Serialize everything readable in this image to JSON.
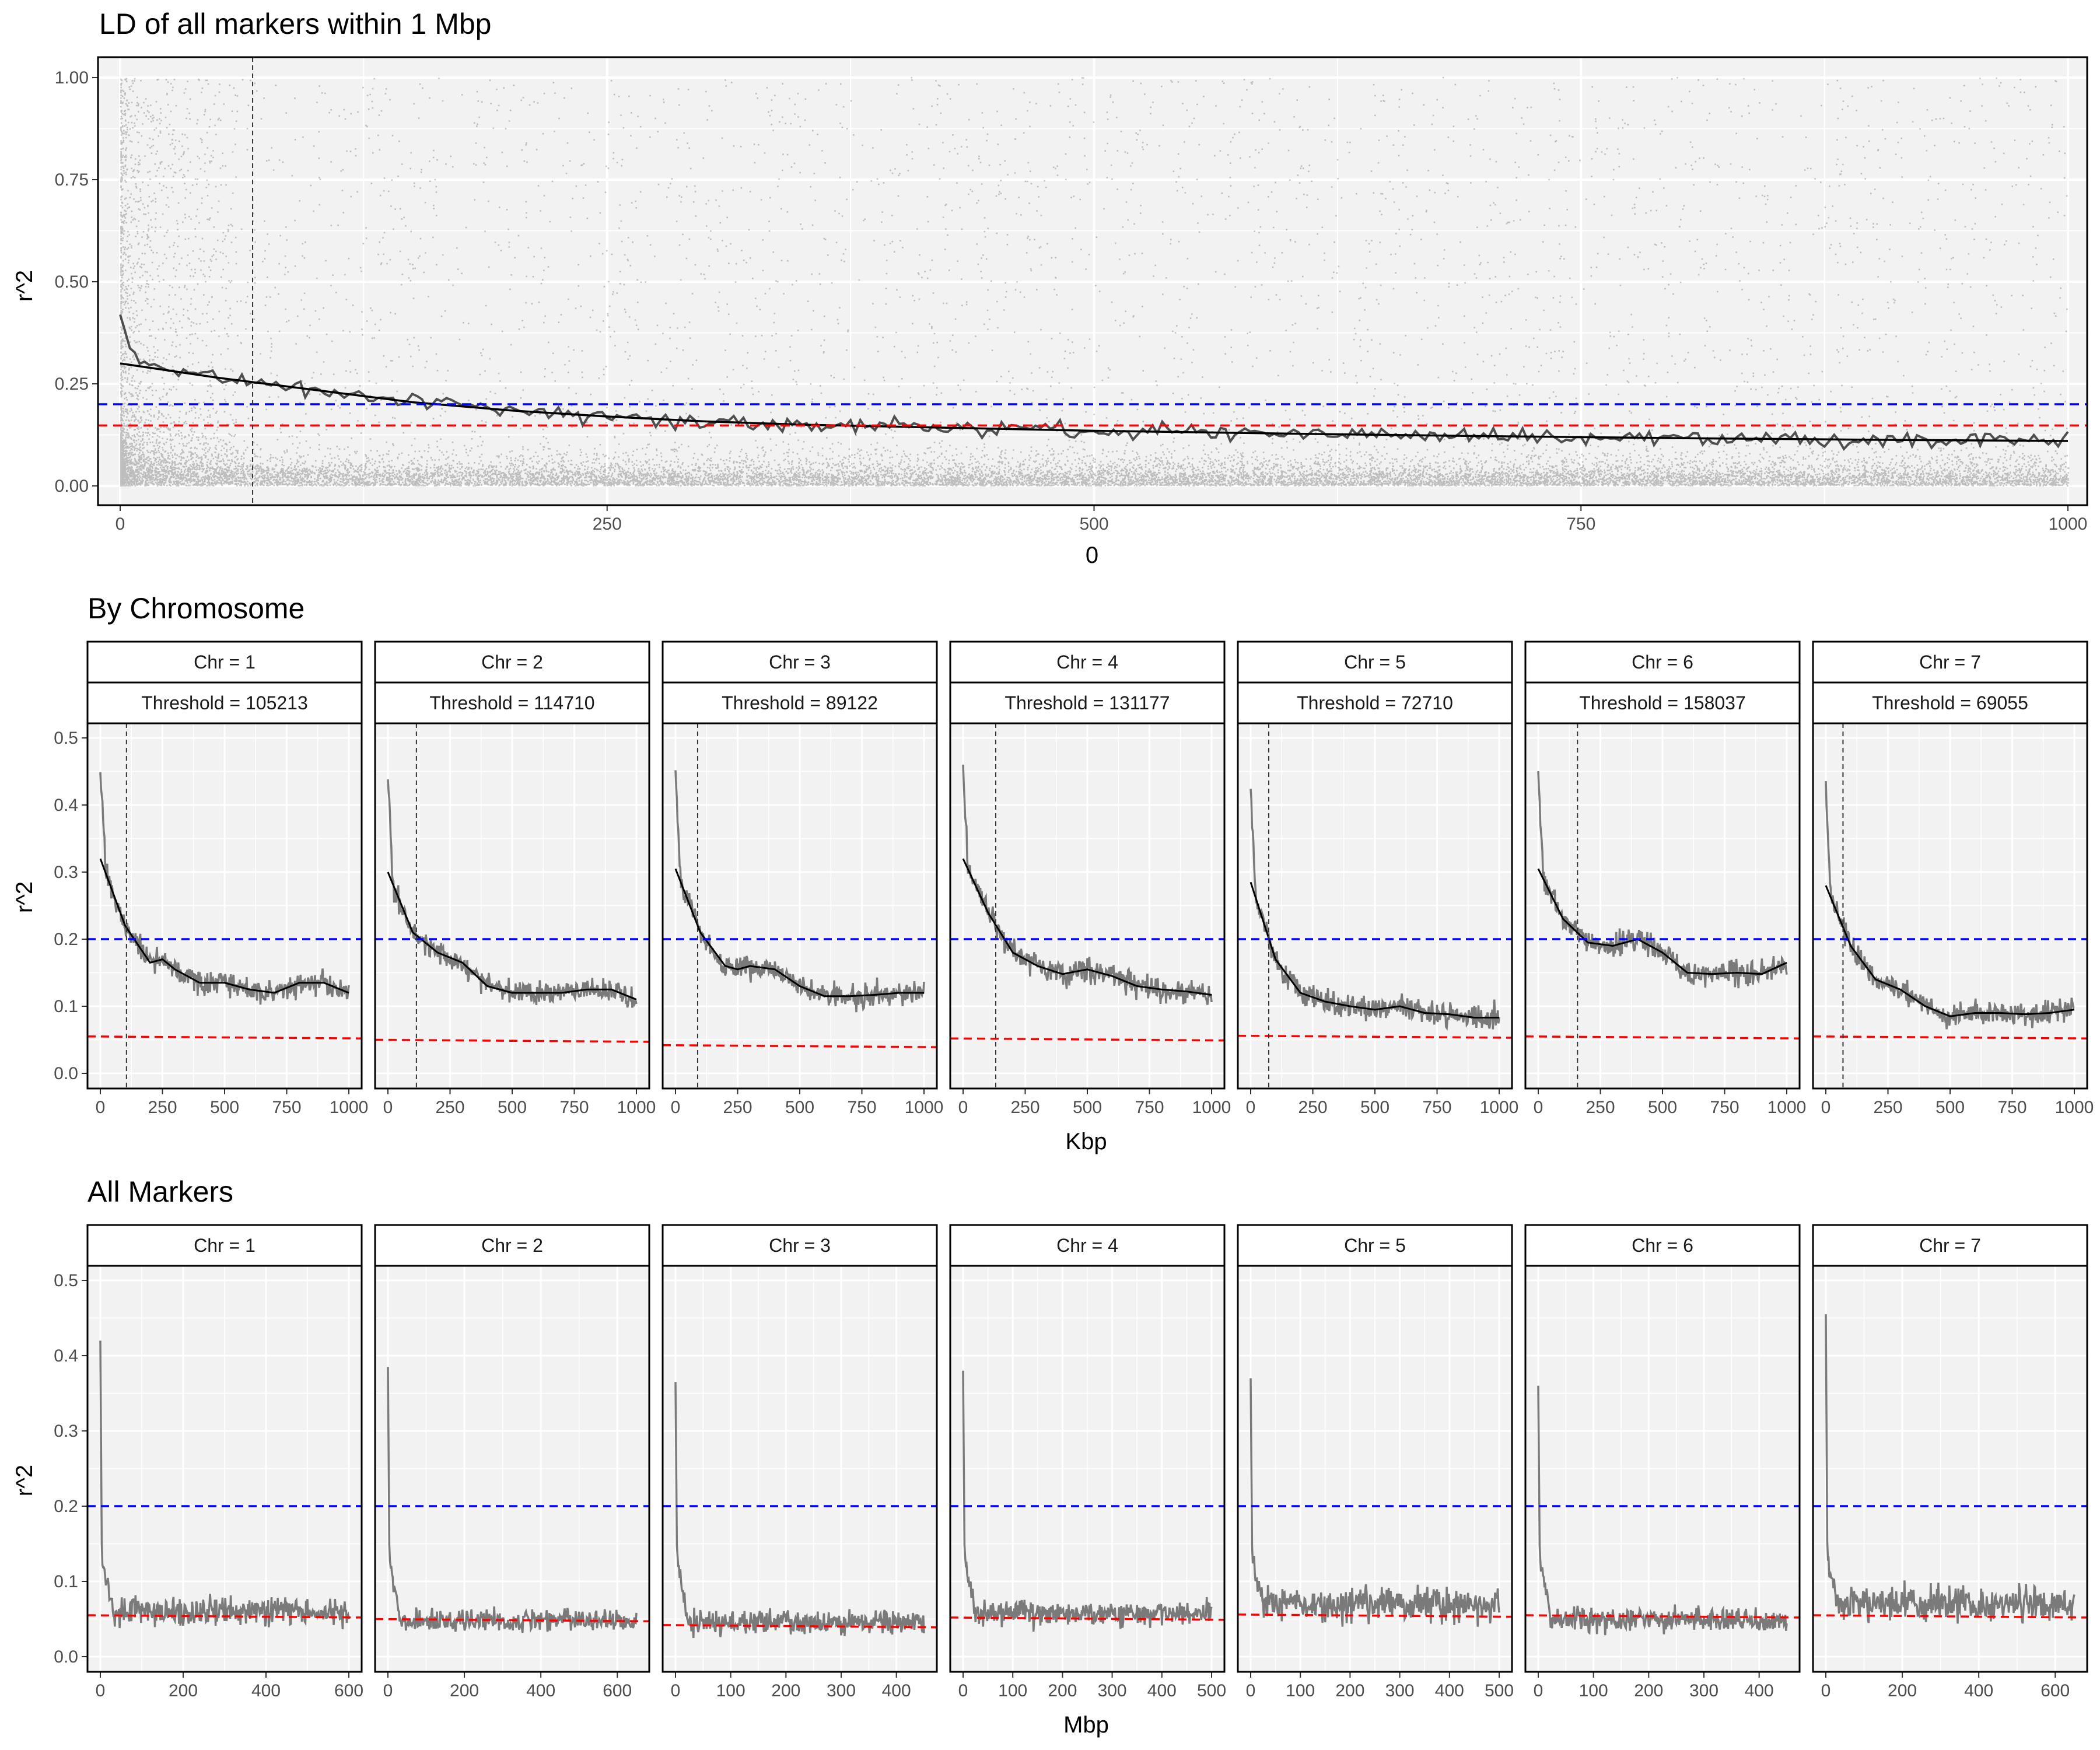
{
  "chart_data": [
    {
      "type": "scatter",
      "title": "LD of all markers within 1 Mbp",
      "xlabel": "0",
      "ylabel": "r^2",
      "xlim": [
        0,
        1000
      ],
      "ylim": [
        0,
        1
      ],
      "xticks": [
        0,
        250,
        500,
        750,
        1000
      ],
      "yticks": [
        "0.00",
        "0.25",
        "0.50",
        "0.75",
        "1.00"
      ],
      "hlines": [
        {
          "y": 0.2,
          "color": "#0000ff",
          "style": "dashed"
        },
        {
          "y": 0.148,
          "color": "#ff0000",
          "style": "dashed"
        }
      ],
      "vline": {
        "x": 68,
        "color": "#333333",
        "style": "dashed"
      },
      "smooth_curve": {
        "x": [
          0,
          50,
          100,
          150,
          200,
          250,
          300,
          350,
          400,
          450,
          500,
          600,
          700,
          800,
          900,
          1000
        ],
        "y": [
          0.3,
          0.265,
          0.235,
          0.205,
          0.185,
          0.17,
          0.158,
          0.15,
          0.145,
          0.14,
          0.135,
          0.128,
          0.122,
          0.117,
          0.113,
          0.11
        ]
      },
      "grid": true
    },
    {
      "type": "line",
      "title": "By Chromosome",
      "xlabel": "Kbp",
      "ylabel": "r^2",
      "xlim": [
        0,
        1000
      ],
      "ylim": [
        0,
        0.52
      ],
      "xticks": [
        0,
        250,
        500,
        750,
        1000
      ],
      "yticks": [
        "0.0",
        "0.1",
        "0.2",
        "0.3",
        "0.4",
        "0.5"
      ],
      "blue_line": 0.2,
      "grid": true,
      "panels": [
        {
          "chr": "Chr = 1",
          "threshold": "Threshold = 105213",
          "threshold_kbp": 105.2,
          "red": 0.055,
          "smooth": [
            [
              0,
              0.32
            ],
            [
              100,
              0.22
            ],
            [
              200,
              0.165
            ],
            [
              250,
              0.17
            ],
            [
              300,
              0.155
            ],
            [
              400,
              0.135
            ],
            [
              500,
              0.135
            ],
            [
              600,
              0.125
            ],
            [
              700,
              0.12
            ],
            [
              800,
              0.135
            ],
            [
              900,
              0.135
            ],
            [
              1000,
              0.12
            ]
          ]
        },
        {
          "chr": "Chr = 2",
          "threshold": "Threshold = 114710",
          "threshold_kbp": 114.7,
          "red": 0.05,
          "smooth": [
            [
              0,
              0.3
            ],
            [
              100,
              0.21
            ],
            [
              200,
              0.18
            ],
            [
              300,
              0.165
            ],
            [
              400,
              0.13
            ],
            [
              500,
              0.12
            ],
            [
              600,
              0.12
            ],
            [
              700,
              0.12
            ],
            [
              800,
              0.125
            ],
            [
              900,
              0.125
            ],
            [
              1000,
              0.11
            ]
          ]
        },
        {
          "chr": "Chr = 3",
          "threshold": "Threshold = 89122",
          "threshold_kbp": 89.1,
          "red": 0.042,
          "smooth": [
            [
              0,
              0.305
            ],
            [
              100,
              0.21
            ],
            [
              200,
              0.16
            ],
            [
              250,
              0.155
            ],
            [
              300,
              0.16
            ],
            [
              400,
              0.155
            ],
            [
              500,
              0.13
            ],
            [
              600,
              0.115
            ],
            [
              700,
              0.115
            ],
            [
              800,
              0.117
            ],
            [
              900,
              0.12
            ],
            [
              1000,
              0.12
            ]
          ]
        },
        {
          "chr": "Chr = 4",
          "threshold": "Threshold = 131177",
          "threshold_kbp": 131.2,
          "red": 0.052,
          "smooth": [
            [
              0,
              0.32
            ],
            [
              100,
              0.24
            ],
            [
              200,
              0.18
            ],
            [
              300,
              0.16
            ],
            [
              400,
              0.148
            ],
            [
              500,
              0.155
            ],
            [
              600,
              0.145
            ],
            [
              700,
              0.13
            ],
            [
              800,
              0.125
            ],
            [
              900,
              0.122
            ],
            [
              1000,
              0.117
            ]
          ]
        },
        {
          "chr": "Chr = 5",
          "threshold": "Threshold = 72710",
          "threshold_kbp": 72.7,
          "red": 0.056,
          "smooth": [
            [
              0,
              0.285
            ],
            [
              100,
              0.17
            ],
            [
              200,
              0.12
            ],
            [
              300,
              0.107
            ],
            [
              400,
              0.1
            ],
            [
              500,
              0.095
            ],
            [
              600,
              0.1
            ],
            [
              700,
              0.09
            ],
            [
              800,
              0.088
            ],
            [
              900,
              0.083
            ],
            [
              1000,
              0.083
            ]
          ]
        },
        {
          "chr": "Chr = 6",
          "threshold": "Threshold = 158037",
          "threshold_kbp": 158.0,
          "red": 0.055,
          "smooth": [
            [
              0,
              0.305
            ],
            [
              100,
              0.23
            ],
            [
              200,
              0.195
            ],
            [
              300,
              0.19
            ],
            [
              400,
              0.2
            ],
            [
              500,
              0.18
            ],
            [
              600,
              0.15
            ],
            [
              700,
              0.148
            ],
            [
              800,
              0.15
            ],
            [
              900,
              0.148
            ],
            [
              1000,
              0.165
            ]
          ]
        },
        {
          "chr": "Chr = 7",
          "threshold": "Threshold = 69055",
          "threshold_kbp": 69.1,
          "red": 0.055,
          "smooth": [
            [
              0,
              0.28
            ],
            [
              100,
              0.19
            ],
            [
              200,
              0.14
            ],
            [
              300,
              0.125
            ],
            [
              400,
              0.1
            ],
            [
              500,
              0.085
            ],
            [
              600,
              0.09
            ],
            [
              700,
              0.09
            ],
            [
              800,
              0.088
            ],
            [
              900,
              0.09
            ],
            [
              1000,
              0.095
            ]
          ]
        }
      ]
    },
    {
      "type": "line",
      "title": "All Markers",
      "xlabel": "Mbp",
      "ylabel": "r^2",
      "ylim": [
        0,
        0.52
      ],
      "yticks": [
        "0.0",
        "0.1",
        "0.2",
        "0.3",
        "0.4",
        "0.5"
      ],
      "blue_line": 0.2,
      "grid": true,
      "panels": [
        {
          "chr": "Chr = 1",
          "xmax": 600,
          "xticks": [
            0,
            200,
            400,
            600
          ],
          "red": 0.055,
          "peak": 0.42,
          "base": 0.06,
          "noise": 0.025
        },
        {
          "chr": "Chr = 2",
          "xmax": 650,
          "xticks": [
            0,
            200,
            400,
            600
          ],
          "red": 0.05,
          "peak": 0.385,
          "base": 0.048,
          "noise": 0.02
        },
        {
          "chr": "Chr = 3",
          "xmax": 450,
          "xticks": [
            0,
            100,
            200,
            300,
            400
          ],
          "red": 0.042,
          "peak": 0.365,
          "base": 0.045,
          "noise": 0.02
        },
        {
          "chr": "Chr = 4",
          "xmax": 500,
          "xticks": [
            0,
            100,
            200,
            300,
            400,
            500
          ],
          "red": 0.052,
          "peak": 0.38,
          "base": 0.058,
          "noise": 0.022
        },
        {
          "chr": "Chr = 5",
          "xmax": 500,
          "xticks": [
            0,
            100,
            200,
            300,
            400,
            500
          ],
          "red": 0.056,
          "peak": 0.37,
          "base": 0.07,
          "noise": 0.03
        },
        {
          "chr": "Chr = 6",
          "xmax": 450,
          "xticks": [
            0,
            100,
            200,
            300,
            400
          ],
          "red": 0.055,
          "peak": 0.36,
          "base": 0.05,
          "noise": 0.02
        },
        {
          "chr": "Chr = 7",
          "xmax": 650,
          "xticks": [
            0,
            200,
            400,
            600
          ],
          "red": 0.055,
          "peak": 0.455,
          "base": 0.07,
          "noise": 0.03
        }
      ]
    }
  ],
  "colors": {
    "panel_bg": "#f2f2f2",
    "grid": "#ffffff",
    "blue": "#0000ff",
    "red": "#ff0000",
    "points": "#000000",
    "noisy_line": "#7a7a7a",
    "smooth_line": "#000000"
  }
}
